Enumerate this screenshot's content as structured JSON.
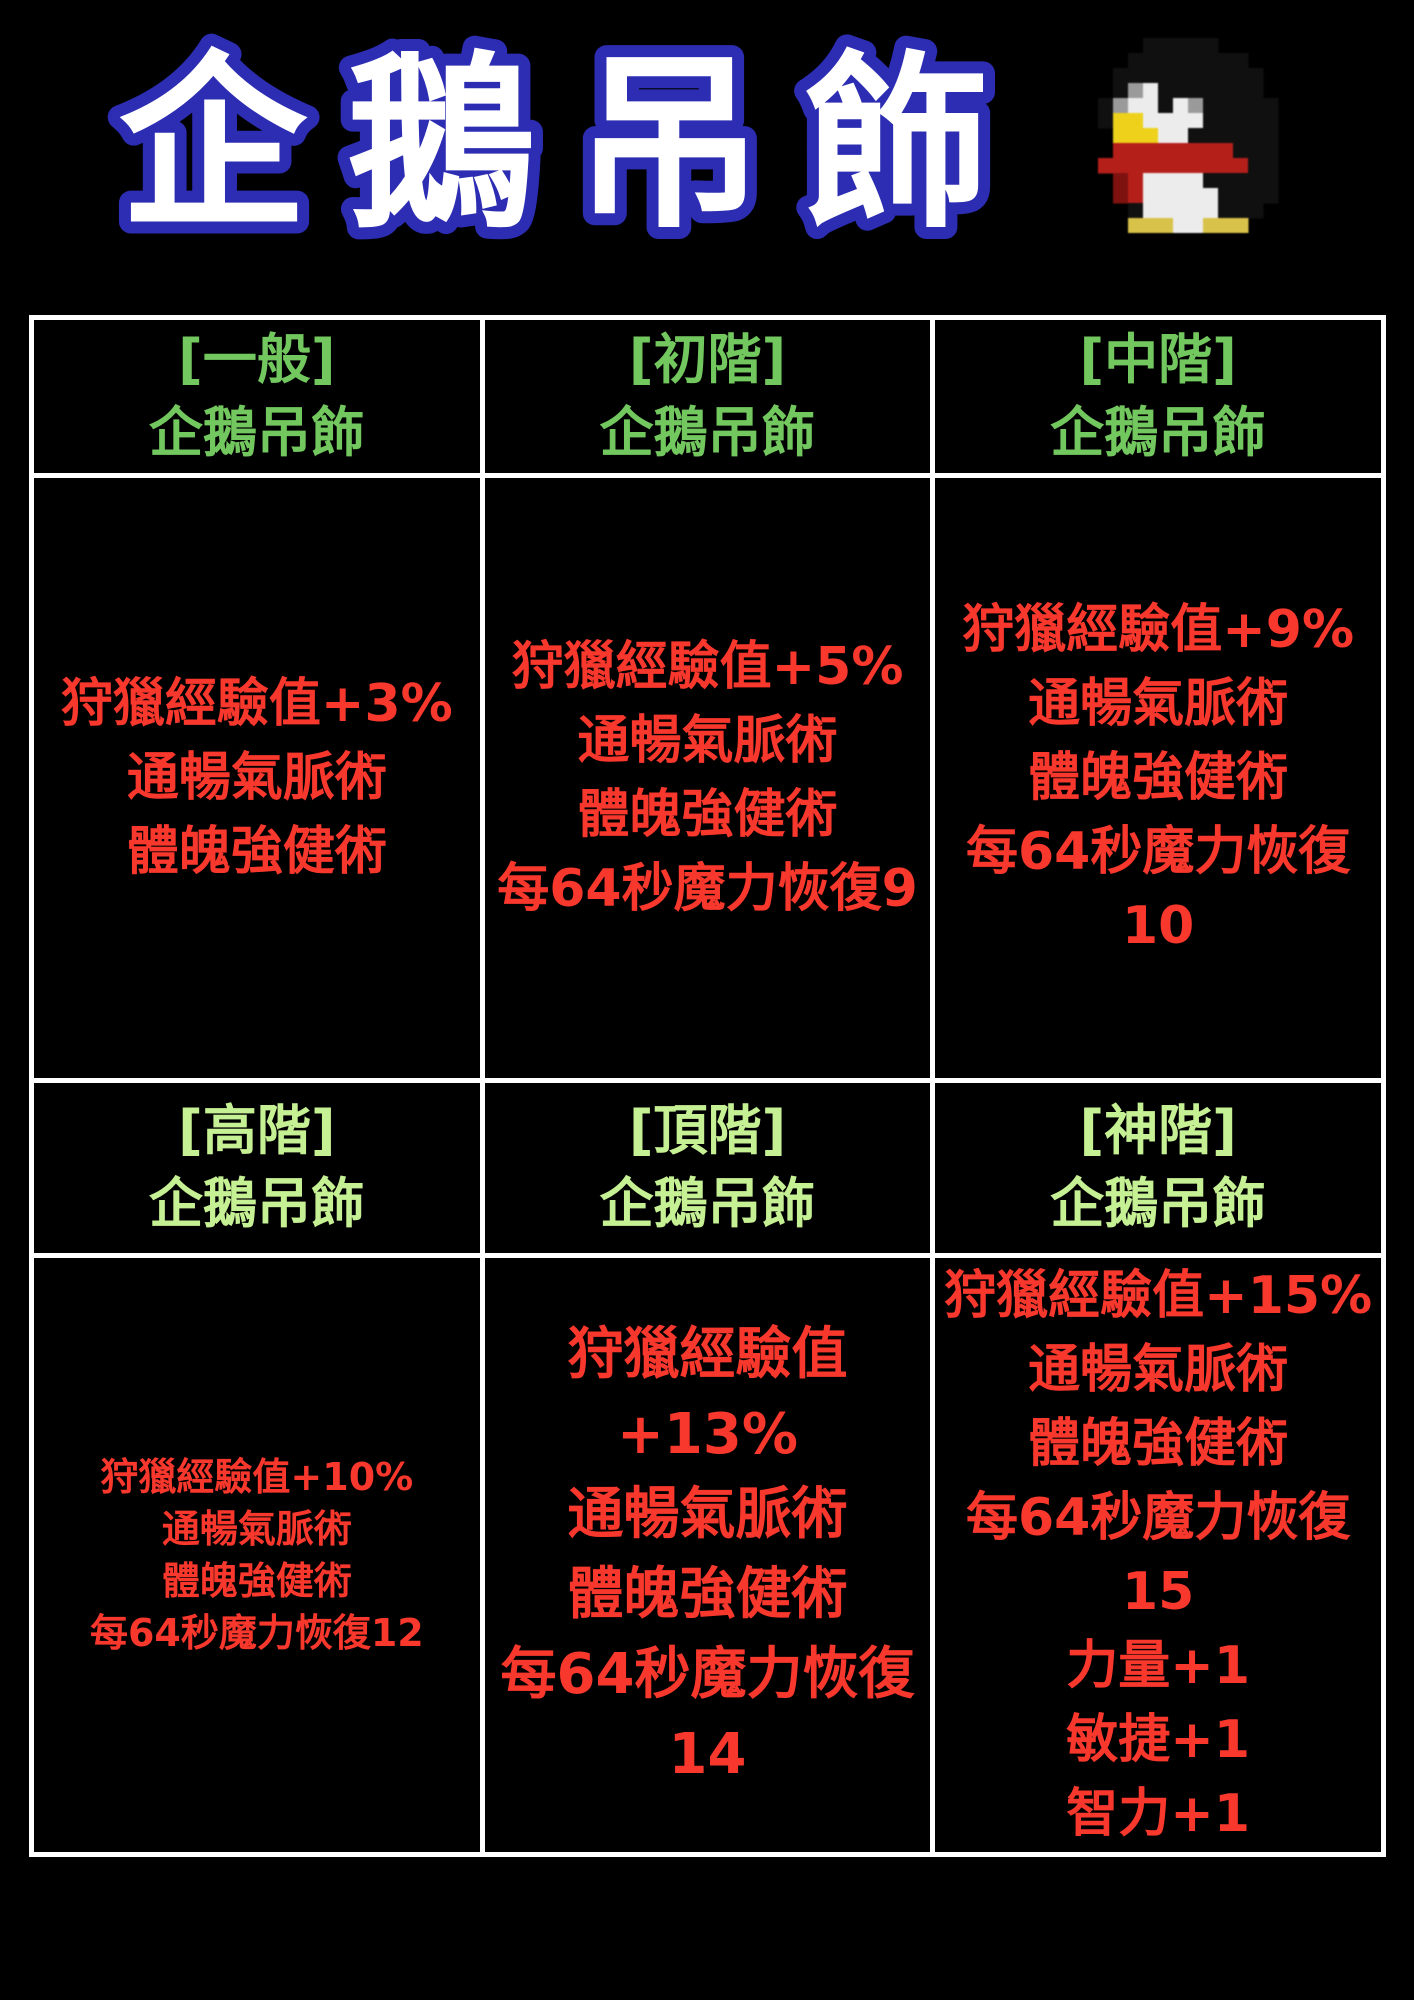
{
  "page": {
    "background_color": "#000000"
  },
  "title": {
    "text": "企鵝吊飾",
    "fill_color": "#ffffff",
    "outline_color": "#2d2db4"
  },
  "penguin_icon": {
    "name": "penguin-icon",
    "palette": {
      "body": "#101010",
      "highlight": "#9a9a9a",
      "white": "#ececec",
      "beak": "#edd11b",
      "scarf": "#b51f1a",
      "scarf_shadow": "#7d120e",
      "feet": "#d8c24a"
    }
  },
  "table": {
    "border_color": "#ffffff",
    "stat_text_color": "#f8372d",
    "header_color_row1": "#72c85e",
    "header_color_row2": "#c6f094",
    "rows": [
      {
        "header_color": "#72c85e",
        "cells": [
          {
            "tier_label": "[一般]",
            "item_name": "企鵝吊飾",
            "text_size": "normal",
            "stats": [
              "狩獵經驗值+3%",
              "通暢氣脈術",
              "體魄強健術"
            ]
          },
          {
            "tier_label": "[初階]",
            "item_name": "企鵝吊飾",
            "text_size": "normal",
            "stats": [
              "狩獵經驗值+5%",
              "通暢氣脈術",
              "體魄強健術",
              "每64秒魔力恢復9"
            ]
          },
          {
            "tier_label": "[中階]",
            "item_name": "企鵝吊飾",
            "text_size": "normal",
            "stats": [
              "狩獵經驗值+9%",
              "通暢氣脈術",
              "體魄強健術",
              "每64秒魔力恢復10"
            ]
          }
        ]
      },
      {
        "header_color": "#c6f094",
        "cells": [
          {
            "tier_label": "[高階]",
            "item_name": "企鵝吊飾",
            "text_size": "small",
            "stats": [
              "狩獵經驗值+10%",
              "通暢氣脈術",
              "體魄強健術",
              "每64秒魔力恢復12"
            ]
          },
          {
            "tier_label": "[頂階]",
            "item_name": "企鵝吊飾",
            "text_size": "large",
            "stats": [
              "狩獵經驗值+13%",
              "通暢氣脈術",
              "體魄強健術",
              "每64秒魔力恢復",
              "14"
            ]
          },
          {
            "tier_label": "[神階]",
            "item_name": "企鵝吊飾",
            "text_size": "normal",
            "stats": [
              "狩獵經驗值+15%",
              "通暢氣脈術",
              "體魄強健術",
              "每64秒魔力恢復15",
              "力量+1",
              "敏捷+1",
              "智力+1"
            ]
          }
        ]
      }
    ]
  }
}
